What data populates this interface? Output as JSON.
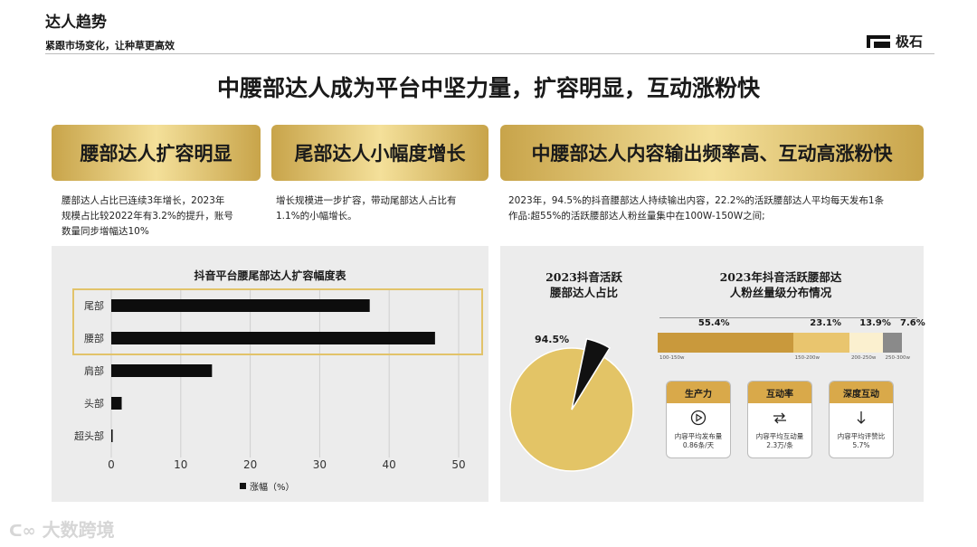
{
  "header": {
    "title": "达人趋势",
    "subtitle": "紧跟市场变化，让种草更高效",
    "logo_text": "极石"
  },
  "main_title": "中腰部达人成为平台中坚力量，扩容明显，互动涨粉快",
  "sections": [
    {
      "heading": "腰部达人扩容明显",
      "lines": [
        "腰部达人占比已连续3年增长，2023年",
        "规模占比较2022年有3.2%的提升，账号",
        "数量同步增幅达10%"
      ]
    },
    {
      "heading": "尾部达人小幅度增长",
      "lines": [
        "增长规模进一步扩容，带动尾部达人占比有",
        "1.1%的小幅增长。"
      ]
    },
    {
      "heading": "中腰部达人内容输出频率高、互动高涨粉快",
      "lines": [
        "2023年，94.5%的抖音腰部达人持续输出内容，22.2%的活跃腰部达人平均每天发布1条",
        "作品:超55%的活跃腰部达人粉丝量集中在100W-150W之间;"
      ]
    }
  ],
  "chart_data": [
    {
      "type": "bar",
      "orientation": "horizontal",
      "title": "抖音平台腰尾部达人扩容幅度表",
      "categories": [
        "尾部",
        "腰部",
        "肩部",
        "头部",
        "超头部"
      ],
      "series": [
        {
          "name": "涨幅（%）",
          "values": [
            37.2,
            46.6,
            14.5,
            1.5,
            0.2
          ]
        }
      ],
      "xlim": [
        0,
        50
      ],
      "xticks": [
        0,
        10,
        20,
        30,
        40,
        50
      ],
      "grid": true,
      "legend": "bottom",
      "highlight": [
        "尾部",
        "腰部"
      ]
    },
    {
      "type": "pie",
      "title_lines": [
        "2023抖音活跃",
        "腰部达人占比"
      ],
      "slices": [
        {
          "label": "94.5%",
          "value": 94.5,
          "color": "#e3c466"
        },
        {
          "label": "",
          "value": 5.5,
          "color": "#111111"
        }
      ]
    },
    {
      "type": "bar",
      "orientation": "stacked-horizontal",
      "title_lines": [
        "2023年抖音活跃腰部达",
        "人粉丝量级分布情况"
      ],
      "segments": [
        {
          "range": "100-150w",
          "pct": "55.4%",
          "value": 55.4,
          "color": "#c9993c"
        },
        {
          "range": "150-200w",
          "pct": "23.1%",
          "value": 23.1,
          "color": "#e9c56e"
        },
        {
          "range": "200-250w",
          "pct": "13.9%",
          "value": 13.9,
          "color": "#fbf0cf"
        },
        {
          "range": "250-300w",
          "pct": "7.6%",
          "value": 7.6,
          "color": "#8a8a8a"
        }
      ]
    }
  ],
  "cards": [
    {
      "title": "生产力",
      "icon": "play-icon",
      "glyph": "▷",
      "line1": "内容平均发布量",
      "line2": "0.86条/天"
    },
    {
      "title": "互动率",
      "icon": "repeat-icon",
      "glyph": "⇄",
      "line1": "内容平均互动量",
      "line2": "2.3万/条"
    },
    {
      "title": "深度互动",
      "icon": "arrow-down-icon",
      "glyph": "↓",
      "line1": "内容平均评赞比",
      "line2": "5.7%"
    }
  ],
  "watermark": "大数跨境"
}
